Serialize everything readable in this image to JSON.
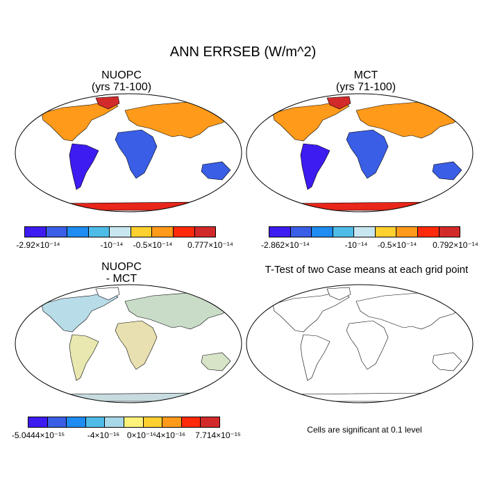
{
  "title": "ANN ERRSEB (W/m^2)",
  "panels": {
    "a": {
      "title": "NUOPC\n(yrs 71-100)"
    },
    "b": {
      "title": "MCT\n(yrs 71-100)"
    },
    "c": {
      "title": "NUOPC\n- MCT"
    },
    "d": {
      "title": "T-Test of two Case means at each grid point"
    }
  },
  "colorbars": {
    "a": {
      "colors": [
        "#3c1cf0",
        "#3a5ee6",
        "#1e8cf0",
        "#4fbce8",
        "#c8e6f0",
        "#ffd030",
        "#ff9a1a",
        "#ff2a0a",
        "#d22a2a"
      ],
      "labels": [
        "-2.92×10⁻¹⁴",
        "-10⁻¹⁴",
        "-0.5×10⁻¹⁴",
        "0.777×10⁻¹⁴"
      ]
    },
    "b": {
      "colors": [
        "#3c1cf0",
        "#3a5ee6",
        "#1e8cf0",
        "#4fbce8",
        "#c8e6f0",
        "#ffd030",
        "#ff9a1a",
        "#ff2a0a",
        "#d22a2a"
      ],
      "labels": [
        "-2.862×10⁻¹⁴",
        "-10⁻¹⁴",
        "-0.5×10⁻¹⁴",
        "0.792×10⁻¹⁴"
      ]
    },
    "c": {
      "colors": [
        "#3c1cf0",
        "#3a5ee6",
        "#1e8cf0",
        "#4fbce8",
        "#a8d8e8",
        "#fff27a",
        "#ffd030",
        "#ff9a1a",
        "#ff2a0a",
        "#d22a2a"
      ],
      "labels": [
        "-5.0444×10⁻¹⁵",
        "-4×10⁻¹⁶",
        "0×10⁻¹⁶",
        "4×10⁻¹⁶",
        "7.714×10⁻¹⁵"
      ]
    }
  },
  "significance_note": "Cells are significant at 0.1 level",
  "colors": {
    "outline": "#000000",
    "significant_cell": "#e00000"
  }
}
